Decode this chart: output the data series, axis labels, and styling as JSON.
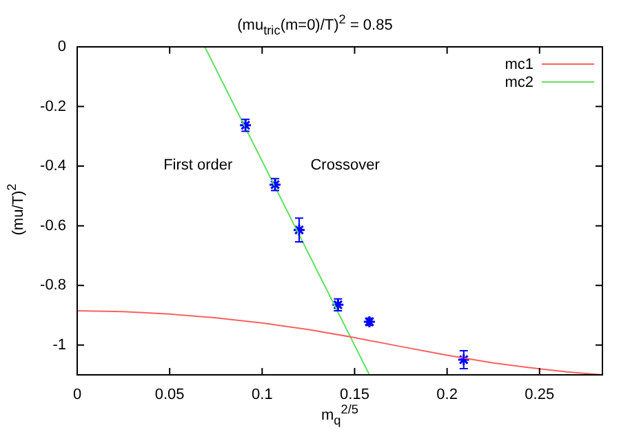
{
  "chart_data": {
    "type": "line",
    "title": "(mu$_{tric}$(m=0)/T)$^{2}$ = 0.85",
    "xlabel": "m$_{q}$$^{2/5}$",
    "ylabel": "(mu/T)$^{2}$",
    "xlim": [
      0,
      0.284
    ],
    "xticks": [
      0,
      0.05,
      0.1,
      0.15,
      0.2,
      0.25
    ],
    "ylim": [
      -1.1,
      0
    ],
    "yticks": [
      0,
      -0.2,
      -0.4,
      -0.6,
      -0.8,
      -1
    ],
    "grid": false,
    "legend": "top right",
    "annotations": [
      "First order",
      "Crossover"
    ],
    "series": [
      {
        "name": "mc1",
        "color": "#ff6060",
        "marker": "none",
        "x": [
          0,
          0.025,
          0.05,
          0.075,
          0.1,
          0.125,
          0.15,
          0.175,
          0.2,
          0.225,
          0.25,
          0.265,
          0.284
        ],
        "values": [
          -0.885,
          -0.888,
          -0.896,
          -0.909,
          -0.926,
          -0.948,
          -0.975,
          -1.005,
          -1.034,
          -1.06,
          -1.08,
          -1.09,
          -1.1
        ]
      },
      {
        "name": "mc2",
        "color": "#60e060",
        "marker": "none",
        "x": [
          0.069,
          0.158
        ],
        "values": [
          0,
          -1.1
        ]
      },
      {
        "type": "scatter",
        "color": "#0000ff",
        "marker": "cross",
        "x": [
          0.091,
          0.107,
          0.12,
          0.141,
          0.158,
          0.209
        ],
        "values": [
          -0.263,
          -0.462,
          -0.614,
          -0.865,
          -0.922,
          -1.049
        ],
        "errors": [
          0.02,
          0.02,
          0.04,
          0.02,
          0.012,
          0.03
        ]
      }
    ]
  }
}
